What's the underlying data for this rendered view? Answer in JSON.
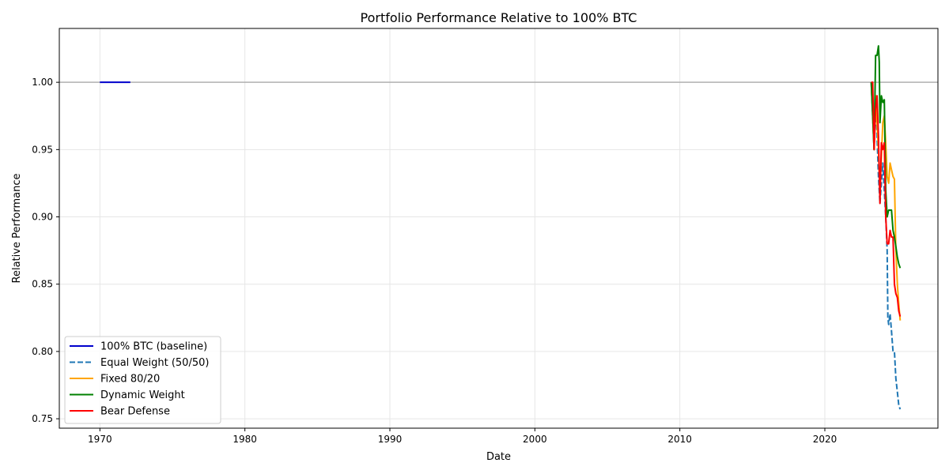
{
  "chart_data": {
    "type": "line",
    "title": "Portfolio Performance Relative to 100% BTC",
    "xlabel": "Date",
    "ylabel": "Relative Performance",
    "xlim": [
      1967.2,
      2027.8
    ],
    "ylim": [
      0.743,
      1.04
    ],
    "xticks": [
      1970,
      1980,
      1990,
      2000,
      2010,
      2020
    ],
    "xtick_labels": [
      "1970",
      "1980",
      "1990",
      "2000",
      "2010",
      "2020"
    ],
    "yticks": [
      0.75,
      0.8,
      0.85,
      0.9,
      0.95,
      1.0
    ],
    "ytick_labels": [
      "0.75",
      "0.80",
      "0.85",
      "0.90",
      "0.95",
      "1.00"
    ],
    "grid": true,
    "legend_position": "lower-left",
    "reference_line": {
      "y": 1.0,
      "color": "#b0b0b0"
    },
    "series": [
      {
        "name": "100% BTC (baseline)",
        "color": "#0000cc",
        "dash": "solid",
        "x": [
          1970.0,
          1972.1
        ],
        "y": [
          1.0,
          1.0
        ]
      },
      {
        "name": "Equal Weight (50/50)",
        "color": "#1f77b4",
        "dash": "dashed",
        "x": [
          2023.2,
          2023.4,
          2023.5,
          2023.7,
          2023.8,
          2024.0,
          2024.2,
          2024.3,
          2024.35,
          2024.4,
          2024.5,
          2024.6,
          2024.7,
          2024.8,
          2024.9,
          2025.0,
          2025.1,
          2025.2
        ],
        "y": [
          1.0,
          0.95,
          0.99,
          0.93,
          0.91,
          0.94,
          0.9,
          0.875,
          0.825,
          0.82,
          0.828,
          0.815,
          0.8,
          0.8,
          0.78,
          0.77,
          0.76,
          0.757
        ]
      },
      {
        "name": "Fixed 80/20",
        "color": "#ffa500",
        "dash": "solid",
        "x": [
          2023.2,
          2023.4,
          2023.5,
          2023.7,
          2023.8,
          2024.0,
          2024.1,
          2024.2,
          2024.3,
          2024.4,
          2024.5,
          2024.6,
          2024.7,
          2024.8,
          2024.9,
          2025.0,
          2025.1,
          2025.2
        ],
        "y": [
          1.0,
          0.95,
          0.99,
          0.95,
          0.92,
          0.97,
          0.975,
          0.955,
          0.93,
          0.925,
          0.94,
          0.935,
          0.93,
          0.928,
          0.875,
          0.85,
          0.835,
          0.823
        ]
      },
      {
        "name": "Dynamic Weight",
        "color": "#008000",
        "dash": "solid",
        "x": [
          2023.2,
          2023.4,
          2023.5,
          2023.6,
          2023.7,
          2023.75,
          2023.8,
          2023.9,
          2024.0,
          2024.1,
          2024.2,
          2024.3,
          2024.4,
          2024.5,
          2024.6,
          2024.7,
          2024.8,
          2024.9,
          2025.0,
          2025.1,
          2025.2
        ],
        "y": [
          1.0,
          0.95,
          1.02,
          1.02,
          1.027,
          1.015,
          0.97,
          0.99,
          0.985,
          0.987,
          0.92,
          0.9,
          0.905,
          0.905,
          0.905,
          0.89,
          0.885,
          0.878,
          0.87,
          0.865,
          0.862
        ]
      },
      {
        "name": "Bear Defense",
        "color": "#ff0000",
        "dash": "solid",
        "x": [
          2023.2,
          2023.3,
          2023.4,
          2023.5,
          2023.6,
          2023.7,
          2023.8,
          2023.9,
          2024.0,
          2024.1,
          2024.2,
          2024.3,
          2024.4,
          2024.5,
          2024.6,
          2024.7,
          2024.8,
          2024.9,
          2025.0,
          2025.1,
          2025.2
        ],
        "y": [
          1.0,
          1.0,
          0.95,
          0.98,
          0.99,
          0.96,
          0.91,
          0.955,
          0.95,
          0.955,
          0.9,
          0.88,
          0.88,
          0.89,
          0.885,
          0.885,
          0.85,
          0.843,
          0.84,
          0.83,
          0.826
        ]
      }
    ]
  }
}
